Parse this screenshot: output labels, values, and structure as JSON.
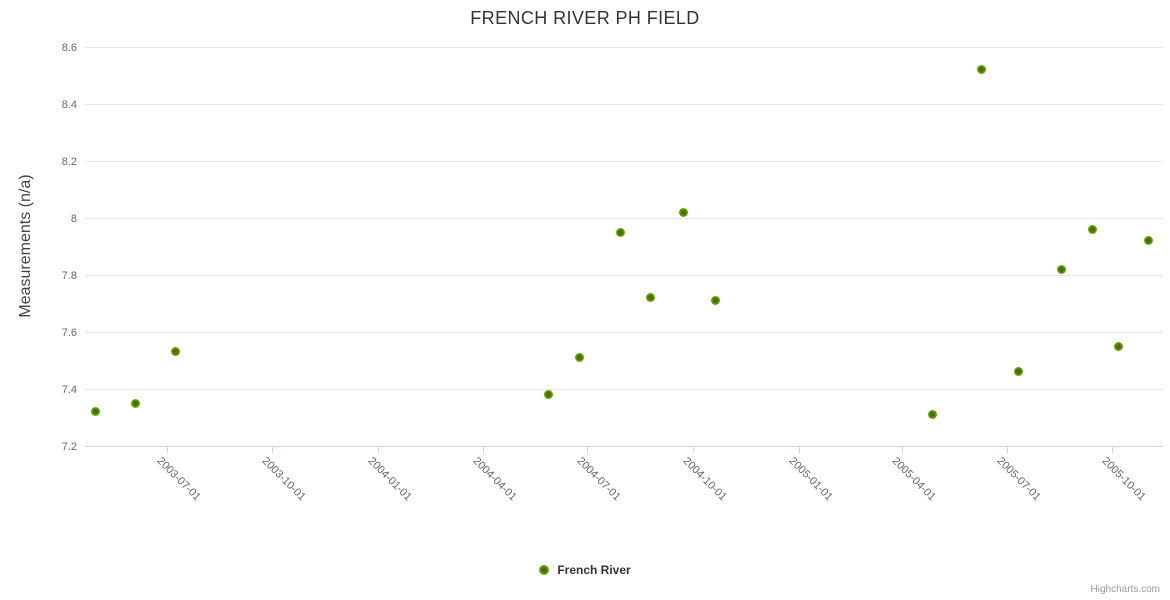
{
  "credits": "Highcharts.com",
  "chart_data": {
    "type": "scatter",
    "title": "FRENCH RIVER PH FIELD",
    "xlabel": "",
    "ylabel": "Measurements (n/a)",
    "ylim": [
      7.2,
      8.6
    ],
    "x_range": [
      "2003-04-21",
      "2005-11-14"
    ],
    "grid": "horizontal-only",
    "legend_position": "bottom-center",
    "y_ticks": {
      "values": [
        8.6,
        8.4,
        8.2,
        8.0,
        7.8,
        7.6,
        7.4,
        7.2
      ],
      "labels": [
        "8.6",
        "8.4",
        "8.2",
        "8",
        "7.8",
        "7.6",
        "7.4",
        "7.2"
      ]
    },
    "x_ticks": {
      "labels": [
        "2003-07-01",
        "2003-10-01",
        "2004-01-01",
        "2004-04-01",
        "2004-07-01",
        "2004-10-01",
        "2005-01-01",
        "2005-04-01",
        "2005-07-01",
        "2005-10-01"
      ]
    },
    "series": [
      {
        "name": "French River",
        "color": "#7cb500",
        "marker_center_color": "#3e7300",
        "points": [
          {
            "date": "2003-04-30",
            "value": 7.32
          },
          {
            "date": "2003-06-04",
            "value": 7.35
          },
          {
            "date": "2003-07-09",
            "value": 7.53
          },
          {
            "date": "2004-05-28",
            "value": 7.38
          },
          {
            "date": "2004-06-24",
            "value": 7.51
          },
          {
            "date": "2004-07-30",
            "value": 7.95
          },
          {
            "date": "2004-08-25",
            "value": 7.72
          },
          {
            "date": "2004-09-23",
            "value": 8.02
          },
          {
            "date": "2004-10-21",
            "value": 7.71
          },
          {
            "date": "2005-04-27",
            "value": 7.31
          },
          {
            "date": "2005-06-09",
            "value": 8.52
          },
          {
            "date": "2005-07-11",
            "value": 7.46
          },
          {
            "date": "2005-08-18",
            "value": 7.82
          },
          {
            "date": "2005-09-14",
            "value": 7.96
          },
          {
            "date": "2005-10-06",
            "value": 7.55
          },
          {
            "date": "2005-11-01",
            "value": 7.92
          }
        ]
      }
    ]
  }
}
